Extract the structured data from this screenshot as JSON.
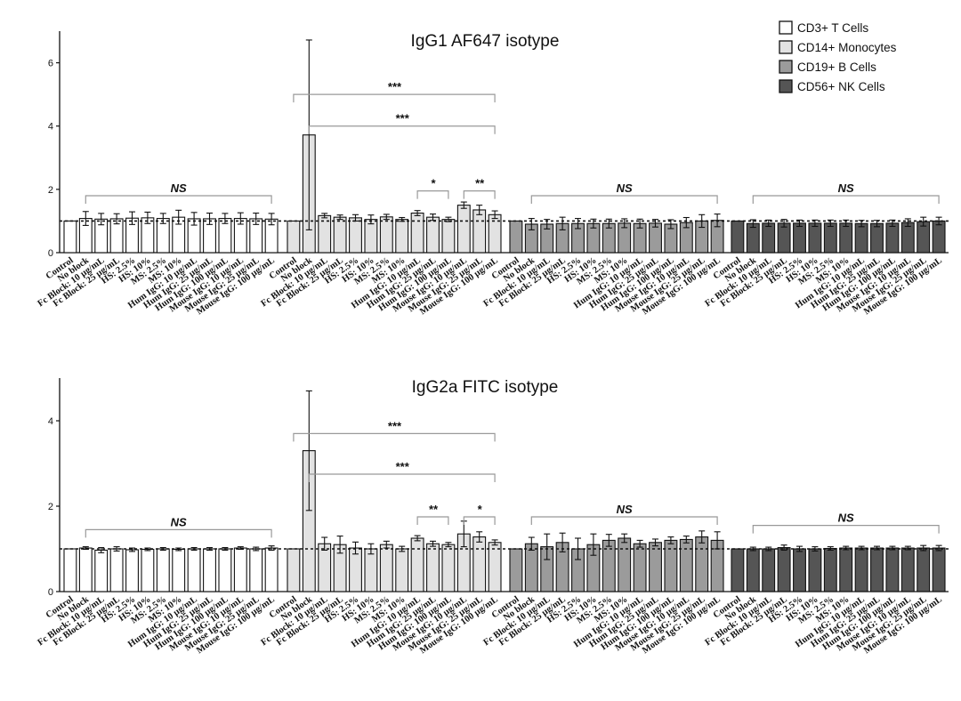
{
  "legend": [
    {
      "name": "CD3+ T Cells",
      "color": "#ffffff"
    },
    {
      "name": "CD14+ Monocytes",
      "color": "#e2e2e2"
    },
    {
      "name": "CD19+ B Cells",
      "color": "#9b9b9b"
    },
    {
      "name": "CD56+ NK Cells",
      "color": "#555555"
    }
  ],
  "chart_data": [
    {
      "type": "bar",
      "title": "IgG1 AF647 isotype",
      "xlabel": "",
      "ylabel": "",
      "ylim": [
        0,
        7
      ],
      "yticks": [
        0,
        2,
        4,
        6
      ],
      "reference_line": 1,
      "categories": [
        "Control",
        "No block",
        "Fc Block: 10 µg/mL",
        "Fc Block: 25 µg/mL",
        "HS: 2.5%",
        "HS: 10%",
        "MS: 2.5%",
        "MS: 10%",
        "Hum IgG: 10 µg/mL",
        "Hum IgG: 25 µg/mL",
        "Hum IgG: 100 µg/mL",
        "Mouse IgG: 10 µg/mL",
        "Mouse IgG: 25 µg/mL",
        "Mouse IgG: 100 µg/mL"
      ],
      "series": [
        {
          "name": "CD3+ T Cells",
          "values": [
            1.0,
            1.08,
            1.06,
            1.07,
            1.09,
            1.1,
            1.08,
            1.12,
            1.07,
            1.07,
            1.08,
            1.08,
            1.07,
            1.06
          ],
          "errors": [
            0,
            0.22,
            0.18,
            0.16,
            0.2,
            0.18,
            0.16,
            0.22,
            0.2,
            0.18,
            0.16,
            0.18,
            0.18,
            0.18
          ]
        },
        {
          "name": "CD14+ Monocytes",
          "values": [
            1.0,
            3.72,
            1.17,
            1.12,
            1.1,
            1.05,
            1.13,
            1.05,
            1.25,
            1.12,
            1.05,
            1.5,
            1.35,
            1.2
          ],
          "errors": [
            0,
            3.0,
            0.07,
            0.07,
            0.1,
            0.14,
            0.08,
            0.06,
            0.08,
            0.1,
            0.07,
            0.1,
            0.15,
            0.12
          ]
        },
        {
          "name": "CD19+ B Cells",
          "values": [
            1.0,
            0.9,
            0.9,
            0.92,
            0.92,
            0.92,
            0.92,
            0.93,
            0.92,
            0.93,
            0.9,
            0.95,
            1.0,
            1.02
          ],
          "errors": [
            0,
            0.18,
            0.15,
            0.2,
            0.16,
            0.14,
            0.14,
            0.14,
            0.14,
            0.12,
            0.14,
            0.16,
            0.2,
            0.2
          ]
        },
        {
          "name": "CD56+ NK Cells",
          "values": [
            1.0,
            0.92,
            0.93,
            0.93,
            0.93,
            0.93,
            0.93,
            0.93,
            0.92,
            0.92,
            0.93,
            0.95,
            0.98,
            1.0
          ],
          "errors": [
            0,
            0.12,
            0.1,
            0.12,
            0.1,
            0.1,
            0.1,
            0.1,
            0.1,
            0.1,
            0.1,
            0.12,
            0.14,
            0.12
          ]
        }
      ],
      "significance": [
        {
          "label": "NS",
          "group": 0,
          "from": 1,
          "to": 13,
          "y": 1.8
        },
        {
          "label": "***",
          "group": 1,
          "from": 0,
          "to": 13,
          "y": 5.0
        },
        {
          "label": "***",
          "group": 1,
          "from": 1,
          "to": 13,
          "y": 4.0
        },
        {
          "label": "*",
          "group": 1,
          "from": 8,
          "to": 10,
          "y": 1.95
        },
        {
          "label": "**",
          "group": 1,
          "from": 11,
          "to": 13,
          "y": 1.95
        },
        {
          "label": "NS",
          "group": 2,
          "from": 1,
          "to": 13,
          "y": 1.8
        },
        {
          "label": "NS",
          "group": 3,
          "from": 1,
          "to": 13,
          "y": 1.8
        }
      ]
    },
    {
      "type": "bar",
      "title": "IgG2a FITC isotype",
      "xlabel": "",
      "ylabel": "",
      "ylim": [
        0,
        5
      ],
      "yticks": [
        0,
        2,
        4
      ],
      "reference_line": 1,
      "categories": [
        "Control",
        "No block",
        "Fc Block: 10 µg/mL",
        "Fc Block: 25 µg/mL",
        "HS: 2.5%",
        "HS: 10%",
        "MS: 2.5%",
        "MS: 10%",
        "Hum IgG: 10 µg/mL",
        "Hum IgG: 25 µg/mL",
        "Hum IgG: 100 µg/mL",
        "Mouse IgG: 10 µg/mL",
        "Mouse IgG: 25 µg/mL",
        "Mouse IgG: 100 µg/mL"
      ],
      "series": [
        {
          "name": "CD3+ T Cells",
          "values": [
            1.0,
            1.02,
            0.97,
            1.0,
            0.98,
            0.99,
            1.0,
            0.99,
            1.0,
            1.0,
            1.0,
            1.02,
            1.0,
            1.02
          ],
          "errors": [
            0,
            0.03,
            0.06,
            0.05,
            0.04,
            0.03,
            0.03,
            0.03,
            0.03,
            0.03,
            0.03,
            0.03,
            0.04,
            0.05
          ]
        },
        {
          "name": "CD14+ Monocytes",
          "values": [
            1.0,
            3.3,
            1.12,
            1.1,
            1.02,
            1.0,
            1.1,
            1.0,
            1.25,
            1.12,
            1.1,
            1.35,
            1.28,
            1.15
          ],
          "errors": [
            0,
            1.4,
            0.15,
            0.2,
            0.14,
            0.12,
            0.08,
            0.06,
            0.06,
            0.06,
            0.05,
            0.3,
            0.12,
            0.06
          ]
        },
        {
          "name": "CD19+ B Cells",
          "values": [
            1.0,
            1.12,
            1.05,
            1.15,
            1.0,
            1.1,
            1.2,
            1.25,
            1.12,
            1.15,
            1.2,
            1.22,
            1.28,
            1.2
          ],
          "errors": [
            0,
            0.15,
            0.3,
            0.22,
            0.25,
            0.25,
            0.14,
            0.1,
            0.08,
            0.08,
            0.08,
            0.08,
            0.14,
            0.2
          ]
        },
        {
          "name": "CD56+ NK Cells",
          "values": [
            1.0,
            1.0,
            1.0,
            1.03,
            1.0,
            1.0,
            1.01,
            1.02,
            1.02,
            1.02,
            1.02,
            1.02,
            1.02,
            1.02
          ],
          "errors": [
            0,
            0.04,
            0.04,
            0.06,
            0.06,
            0.05,
            0.04,
            0.04,
            0.04,
            0.04,
            0.04,
            0.04,
            0.06,
            0.06
          ]
        }
      ],
      "significance": [
        {
          "label": "NS",
          "group": 0,
          "from": 1,
          "to": 13,
          "y": 1.45
        },
        {
          "label": "***",
          "group": 1,
          "from": 0,
          "to": 13,
          "y": 3.7
        },
        {
          "label": "***",
          "group": 1,
          "from": 1,
          "to": 13,
          "y": 2.75
        },
        {
          "label": "**",
          "group": 1,
          "from": 8,
          "to": 10,
          "y": 1.75
        },
        {
          "label": "*",
          "group": 1,
          "from": 11,
          "to": 13,
          "y": 1.75
        },
        {
          "label": "NS",
          "group": 2,
          "from": 1,
          "to": 13,
          "y": 1.75
        },
        {
          "label": "NS",
          "group": 3,
          "from": 1,
          "to": 13,
          "y": 1.55
        }
      ]
    }
  ]
}
